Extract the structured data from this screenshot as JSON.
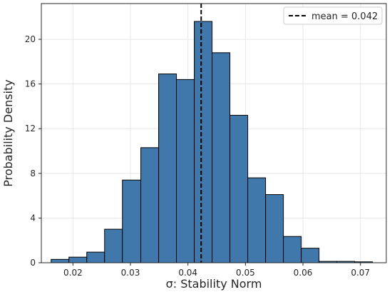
{
  "chart_data": {
    "type": "bar",
    "subtype": "histogram",
    "xlabel": "σ: Stability Norm",
    "ylabel": "Probability Density",
    "xlim": [
      0.0145,
      0.0745
    ],
    "ylim": [
      0,
      23.2
    ],
    "xticks": [
      0.02,
      0.03,
      0.04,
      0.05,
      0.06,
      0.07
    ],
    "xtick_labels": [
      "0.02",
      "0.03",
      "0.04",
      "0.05",
      "0.06",
      "0.07"
    ],
    "yticks": [
      0,
      4,
      8,
      12,
      16,
      20
    ],
    "ytick_labels": [
      "0",
      "4",
      "8",
      "12",
      "16",
      "20"
    ],
    "bin_edges": [
      0.0162,
      0.0193,
      0.0224,
      0.0255,
      0.0286,
      0.0318,
      0.0349,
      0.038,
      0.0411,
      0.0442,
      0.0473,
      0.0504,
      0.0535,
      0.0566,
      0.0597,
      0.0628,
      0.0659,
      0.069,
      0.0721
    ],
    "values": [
      0.3,
      0.5,
      0.95,
      3.0,
      7.4,
      10.3,
      16.9,
      16.4,
      21.6,
      18.8,
      13.2,
      7.6,
      6.1,
      2.35,
      1.3,
      0.12,
      0.12,
      0.08
    ],
    "bar_color": "#4078ab",
    "edge_color": "#000000",
    "grid": true,
    "mean_line": {
      "value": 0.0423,
      "style": "dashed",
      "color": "#000000",
      "label": "mean = 0.042"
    },
    "legend": {
      "position": "top-right",
      "entries": [
        "mean = 0.042"
      ]
    }
  }
}
